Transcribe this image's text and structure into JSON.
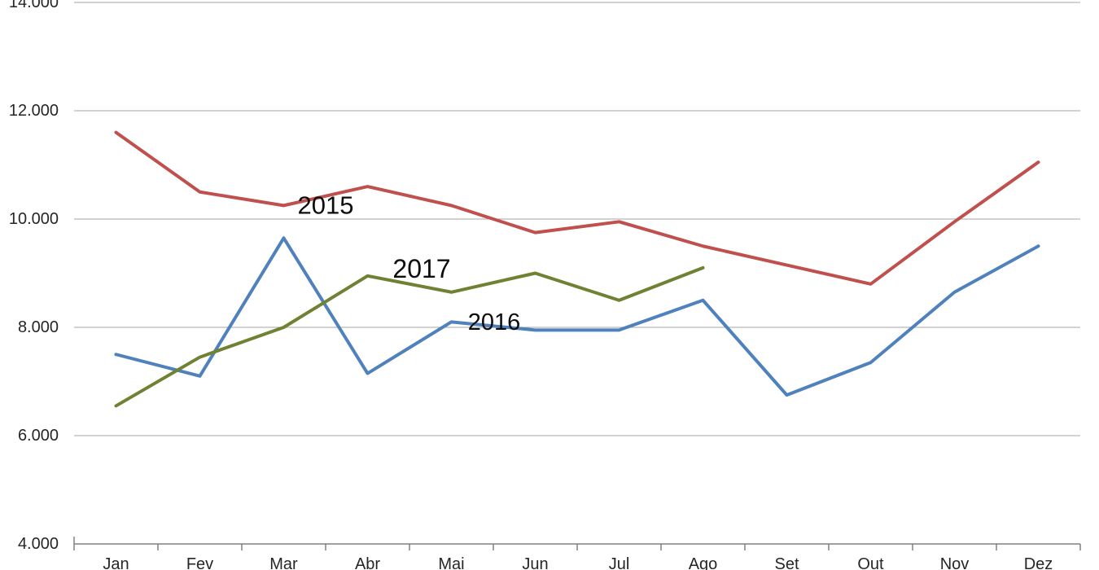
{
  "chart_data": {
    "type": "line",
    "title": "",
    "xlabel": "",
    "ylabel": "",
    "categories": [
      "Jan",
      "Fev",
      "Mar",
      "Abr",
      "Mai",
      "Jun",
      "Jul",
      "Ago",
      "Set",
      "Out",
      "Nov",
      "Dez"
    ],
    "series": [
      {
        "name": "2015",
        "color": "#C0504D",
        "values": [
          11600,
          10500,
          10250,
          10600,
          10250,
          9750,
          9950,
          9500,
          9150,
          8800,
          9950,
          11050
        ]
      },
      {
        "name": "2016",
        "color": "#4F81BD",
        "values": [
          7500,
          7100,
          9650,
          7150,
          8100,
          7950,
          7950,
          8500,
          6750,
          7350,
          8650,
          9500
        ]
      },
      {
        "name": "2017",
        "color": "#6F8132",
        "values": [
          6550,
          7450,
          8000,
          8950,
          8650,
          9000,
          8500,
          9100,
          null,
          null,
          null,
          null
        ]
      }
    ],
    "annotations": [
      {
        "text": "2015"
      },
      {
        "text": "2016"
      },
      {
        "text": "2017"
      }
    ],
    "ylim": [
      4000,
      14000
    ],
    "yticks": {
      "values": [
        4000,
        6000,
        8000,
        10000,
        12000,
        14000
      ],
      "labels": [
        "4.000",
        "6.000",
        "8.000",
        "10.000",
        "12.000",
        "14.000"
      ]
    },
    "grid": true,
    "legend_position": "inline-labels",
    "colors": {
      "grid_line": "#A6A6A6",
      "axis_line": "#808080",
      "tick_label": "#262626",
      "annotation_text": "#0d0d0d",
      "background": "#ffffff"
    }
  }
}
